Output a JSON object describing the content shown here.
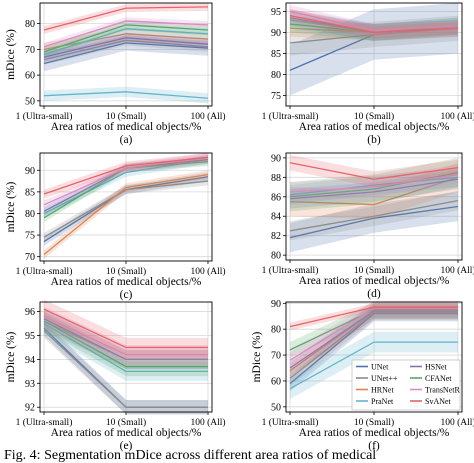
{
  "caption": "Fig. 4: Segmentation mDice across different area ratios of medical",
  "legend_entries": [
    {
      "name": "UNet",
      "color": "#4c72b0"
    },
    {
      "name": "UNet++",
      "color": "#8c8c8c"
    },
    {
      "name": "HRNet",
      "color": "#dd8452"
    },
    {
      "name": "PraNet",
      "color": "#64b5cd"
    },
    {
      "name": "HSNet",
      "color": "#8172b3"
    },
    {
      "name": "CFANet",
      "color": "#55a868"
    },
    {
      "name": "TransNetR",
      "color": "#da8bc3"
    },
    {
      "name": "SvANet",
      "color": "#e8636b"
    }
  ],
  "chart_data": [
    {
      "type": "line",
      "panel_label": "(a)",
      "ylabel": "mDice (%)",
      "xlabel": "Area ratios of medical objects/%",
      "categories": [
        "1 (Ultra-small)",
        "10 (Small)",
        "100 (All)"
      ],
      "ylim": [
        48,
        88
      ],
      "yticks": [
        50,
        60,
        70,
        80
      ],
      "grid": true,
      "series": [
        {
          "name": "UNet",
          "values": [
            64.5,
            72.5,
            70.5
          ],
          "band": 3
        },
        {
          "name": "UNet++",
          "values": [
            66,
            73.5,
            71
          ],
          "band": 2
        },
        {
          "name": "HRNet",
          "values": [
            70,
            76,
            74
          ],
          "band": 2.5
        },
        {
          "name": "PraNet",
          "values": [
            68,
            78,
            76
          ],
          "band": 2
        },
        {
          "name": "HSNet",
          "values": [
            67,
            74.5,
            72
          ],
          "band": 2
        },
        {
          "name": "CFANet",
          "values": [
            69,
            79.5,
            77.5
          ],
          "band": 2
        },
        {
          "name": "TransNetR",
          "values": [
            71,
            81,
            79.5
          ],
          "band": 1.5
        },
        {
          "name": "SvANet",
          "values": [
            77.5,
            86,
            86.5
          ],
          "band": 1.5
        },
        {
          "name": "PraNet",
          "values": [
            52,
            53.5,
            51
          ],
          "band": 2
        }
      ]
    },
    {
      "type": "line",
      "panel_label": "(b)",
      "ylabel": "",
      "xlabel": "Area ratios of medical objects/%",
      "categories": [
        "1 (Ultra-small)",
        "10 (Small)",
        "100 (All)"
      ],
      "ylim": [
        72.5,
        97
      ],
      "yticks": [
        75,
        80,
        85,
        90,
        95
      ],
      "grid": true,
      "series": [
        {
          "name": "UNet",
          "values": [
            81,
            89.5,
            91
          ],
          "band": 6
        },
        {
          "name": "UNet++",
          "values": [
            87.5,
            89.5,
            91
          ],
          "band": 3
        },
        {
          "name": "HRNet",
          "values": [
            91,
            90,
            91
          ],
          "band": 2
        },
        {
          "name": "PraNet",
          "values": [
            93,
            90,
            91.5
          ],
          "band": 2
        },
        {
          "name": "HSNet",
          "values": [
            93.5,
            90,
            91
          ],
          "band": 2
        },
        {
          "name": "CFANet",
          "values": [
            92,
            90,
            91.5
          ],
          "band": 2
        },
        {
          "name": "TransNetR",
          "values": [
            95,
            90.5,
            91.5
          ],
          "band": 1.5
        },
        {
          "name": "SvANet",
          "values": [
            94,
            90,
            91
          ],
          "band": 1.5
        }
      ]
    },
    {
      "type": "line",
      "panel_label": "(c)",
      "ylabel": "mDice (%)",
      "xlabel": "Area ratios of medical objects/%",
      "categories": [
        "1 (Ultra-small)",
        "10 (Small)",
        "100 (All)"
      ],
      "ylim": [
        69,
        94
      ],
      "yticks": [
        70,
        75,
        80,
        85,
        90
      ],
      "grid": true,
      "series": [
        {
          "name": "UNet",
          "values": [
            73.5,
            85.5,
            88.5
          ],
          "band": 1
        },
        {
          "name": "UNet++",
          "values": [
            74.5,
            85.5,
            87.5
          ],
          "band": 1
        },
        {
          "name": "HRNet",
          "values": [
            70.5,
            86,
            89
          ],
          "band": 1
        },
        {
          "name": "PraNet",
          "values": [
            80,
            89.5,
            92.5
          ],
          "band": 1
        },
        {
          "name": "HSNet",
          "values": [
            80.5,
            90.5,
            92.5
          ],
          "band": 1
        },
        {
          "name": "CFANet",
          "values": [
            79,
            90.5,
            92
          ],
          "band": 1
        },
        {
          "name": "TransNetR",
          "values": [
            82,
            90.5,
            93
          ],
          "band": 1
        },
        {
          "name": "SvANet",
          "values": [
            84.5,
            91,
            93
          ],
          "band": 1
        }
      ]
    },
    {
      "type": "line",
      "panel_label": "(d)",
      "ylabel": "",
      "xlabel": "Area ratios of medical objects/%",
      "categories": [
        "1 (Ultra-small)",
        "10 (Small)",
        "100 (All)"
      ],
      "ylim": [
        79.5,
        90.5
      ],
      "yticks": [
        80,
        82,
        84,
        86,
        88,
        90
      ],
      "grid": true,
      "series": [
        {
          "name": "UNet",
          "values": [
            81.8,
            83.8,
            85
          ],
          "band": 1.5
        },
        {
          "name": "UNet++",
          "values": [
            82.5,
            84,
            85.6
          ],
          "band": 1
        },
        {
          "name": "HRNet",
          "values": [
            85.5,
            85.2,
            88
          ],
          "band": 1.5
        },
        {
          "name": "PraNet",
          "values": [
            86.2,
            87.2,
            88
          ],
          "band": 1
        },
        {
          "name": "HSNet",
          "values": [
            85.8,
            86.5,
            87.8
          ],
          "band": 1
        },
        {
          "name": "CFANet",
          "values": [
            86,
            86.8,
            88.5
          ],
          "band": 1.5
        },
        {
          "name": "TransNetR",
          "values": [
            86.5,
            87,
            88.3
          ],
          "band": 1
        },
        {
          "name": "SvANet",
          "values": [
            89.5,
            87.8,
            89
          ],
          "band": 0.8
        }
      ]
    },
    {
      "type": "line",
      "panel_label": "(e)",
      "ylabel": "mDice (%)",
      "xlabel": "Area ratios of medical objects/%",
      "categories": [
        "1 (Ultra-small)",
        "10 (Small)",
        "100 (All)"
      ],
      "ylim": [
        91.8,
        96.4
      ],
      "yticks": [
        92,
        93,
        94,
        95,
        96
      ],
      "grid": true,
      "series": [
        {
          "name": "UNet",
          "values": [
            95.3,
            92,
            92
          ],
          "band": 0.3
        },
        {
          "name": "UNet++",
          "values": [
            95.2,
            92,
            92
          ],
          "band": 0.3
        },
        {
          "name": "HRNet",
          "values": [
            95.6,
            94,
            94
          ],
          "band": 0.4
        },
        {
          "name": "PraNet",
          "values": [
            95.5,
            93.5,
            93.5
          ],
          "band": 0.4
        },
        {
          "name": "HSNet",
          "values": [
            95.7,
            94,
            94
          ],
          "band": 0.4
        },
        {
          "name": "CFANet",
          "values": [
            95.6,
            93.7,
            93.7
          ],
          "band": 0.4
        },
        {
          "name": "TransNetR",
          "values": [
            95.8,
            94.2,
            94.2
          ],
          "band": 0.4
        },
        {
          "name": "SvANet",
          "values": [
            96.1,
            94.5,
            94.5
          ],
          "band": 0.4
        }
      ]
    },
    {
      "type": "line",
      "panel_label": "(f)",
      "ylabel": "mDice (%)",
      "xlabel": "Area ratios of medical objects/%",
      "categories": [
        "1 (Ultra-small)",
        "10 (Small)",
        "100 (All)"
      ],
      "ylim": [
        48,
        90.5
      ],
      "yticks": [
        50,
        60,
        70,
        80,
        90
      ],
      "grid": true,
      "series": [
        {
          "name": "UNet",
          "values": [
            59,
            86,
            86
          ],
          "band": 3
        },
        {
          "name": "UNet++",
          "values": [
            61,
            86.5,
            86.5
          ],
          "band": 3
        },
        {
          "name": "HRNet",
          "values": [
            64,
            87,
            87
          ],
          "band": 3
        },
        {
          "name": "PraNet",
          "values": [
            57,
            75,
            75
          ],
          "band": 4
        },
        {
          "name": "HSNet",
          "values": [
            65,
            87,
            87
          ],
          "band": 3
        },
        {
          "name": "CFANet",
          "values": [
            72,
            87.5,
            87.5
          ],
          "band": 3
        },
        {
          "name": "TransNetR",
          "values": [
            68,
            88,
            88
          ],
          "band": 3
        },
        {
          "name": "SvANet",
          "values": [
            81,
            88.5,
            88.5
          ],
          "band": 1.5
        }
      ],
      "legend": "bottom-right"
    }
  ]
}
